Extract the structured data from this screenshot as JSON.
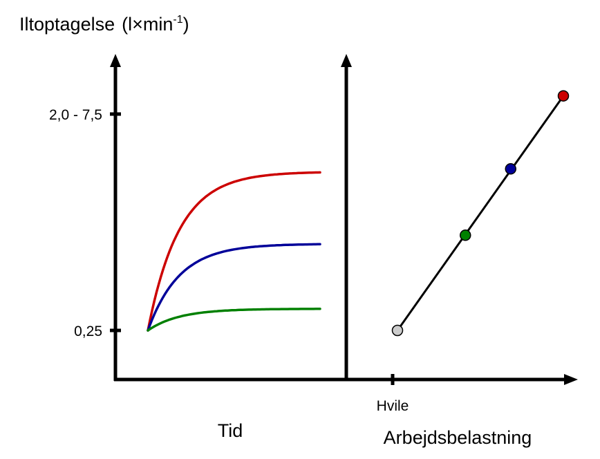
{
  "chart_data": {
    "type": "line",
    "ylabel": {
      "main": "Iltoptagelse",
      "unit_prefix": "(l",
      "unit_times": "×",
      "unit_min": "min",
      "unit_exp": "-1",
      "unit_suffix": ")"
    },
    "y_ticks": [
      "0,25",
      "2,0 - 7,5"
    ],
    "panels": [
      {
        "xlabel": "Tid",
        "series": [
          {
            "color": "#cc0000",
            "y_start": 0.25,
            "y_plateau": 0.8,
            "rate": 5.5
          },
          {
            "color": "#000099",
            "y_start": 0.25,
            "y_plateau": 0.55,
            "rate": 5.5
          },
          {
            "color": "#008000",
            "y_start": 0.25,
            "y_plateau": 0.325,
            "rate": 5.5
          }
        ]
      },
      {
        "xlabel": "Arbejdsbelastning",
        "x_ticks": [
          "Hvile"
        ],
        "points": [
          {
            "x": 0,
            "y": 0.25,
            "color": "#cccccc"
          },
          {
            "x": 0.393,
            "y": 0.58,
            "color": "#008000"
          },
          {
            "x": 0.655,
            "y": 0.81,
            "color": "#000099"
          },
          {
            "x": 0.96,
            "y": 1.063,
            "color": "#cc0000"
          }
        ]
      }
    ],
    "legend": false,
    "grid": false
  }
}
